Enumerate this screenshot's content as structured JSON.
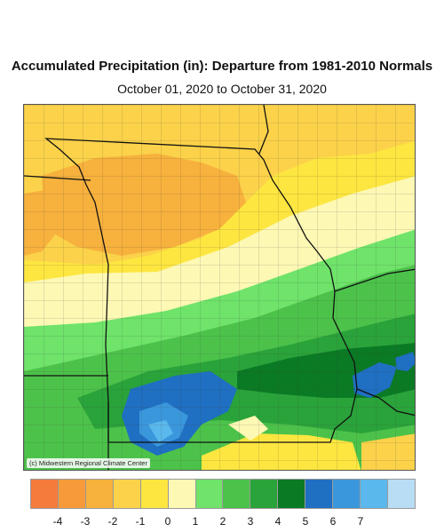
{
  "title": "Accumulated Precipitation (in): Departure from 1981-2010 Normals",
  "subtitle": "October 01, 2020 to October 31, 2020",
  "credit": "(c) Midwestern Regional Climate Center",
  "legend": {
    "colors": [
      "#f47b3c",
      "#f79b3a",
      "#f7b13d",
      "#fbd24a",
      "#fde640",
      "#fdf8b4",
      "#6fe36a",
      "#4cc24a",
      "#2aa33a",
      "#0b7a25",
      "#1f6fc2",
      "#3b97dc",
      "#5bb8ec",
      "#b9ddf5"
    ],
    "labels": [
      "-4",
      "-3",
      "-2",
      "-1",
      "0",
      "1",
      "2",
      "3",
      "4",
      "5",
      "6",
      "7"
    ]
  },
  "colors": {
    "strong_dry": "#f7b13d",
    "dry": "#fbd24a",
    "slightly_dry": "#fde640",
    "near_normal": "#fdf8b4",
    "wet1": "#6fe36a",
    "wet2": "#4cc24a",
    "wet3": "#2aa33a",
    "wet4": "#0b7a25",
    "very_wet1": "#1f6fc2",
    "very_wet2": "#3b97dc",
    "very_wet3": "#5bb8ec"
  }
}
